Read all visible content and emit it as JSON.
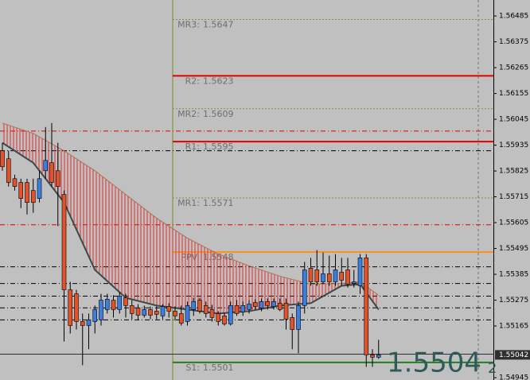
{
  "chart_data": {
    "type": "candlestick",
    "ylim": [
      1.54935,
      1.56553
    ],
    "yticks": [
      1.56485,
      1.56375,
      1.56265,
      1.56155,
      1.56045,
      1.55935,
      1.55825,
      1.55715,
      1.55605,
      1.55495,
      1.55385,
      1.55275,
      1.55165,
      1.54945
    ],
    "bull_color": "#3d7fe0",
    "bear_color": "#e2532b",
    "open": [
      1.55911,
      1.55877,
      1.55792,
      1.55776,
      1.55776,
      1.55742,
      1.55708,
      1.55826,
      1.5586,
      1.55826,
      1.55725,
      1.55319,
      1.55302,
      1.55184,
      1.55167,
      1.55184,
      1.55191,
      1.55235,
      1.55275,
      1.55235,
      1.55285,
      1.55252,
      1.55242,
      1.55211,
      1.55235,
      1.55228,
      1.55208,
      1.55248,
      1.55228,
      1.55218,
      1.55184,
      1.55235,
      1.55275,
      1.55252,
      1.55235,
      1.55218,
      1.55208,
      1.55174,
      1.55252,
      1.55225,
      1.55235,
      1.55265,
      1.55242,
      1.55269,
      1.55248,
      1.55262,
      1.55262,
      1.55201,
      1.5515,
      1.55252,
      1.55411,
      1.55404,
      1.55353,
      1.55387,
      1.55353,
      1.55394,
      1.55404,
      1.55346,
      1.55336,
      1.55455,
      1.55042,
      1.55032
    ],
    "high": [
      1.55945,
      1.55911,
      1.55809,
      1.55792,
      1.55792,
      1.55792,
      1.55826,
      1.56012,
      1.56029,
      1.55945,
      1.55742,
      1.55353,
      1.55319,
      1.55218,
      1.55218,
      1.55252,
      1.55302,
      1.55302,
      1.55296,
      1.55309,
      1.55302,
      1.55275,
      1.55258,
      1.55252,
      1.55248,
      1.55248,
      1.55258,
      1.55262,
      1.55248,
      1.55252,
      1.55269,
      1.55285,
      1.55285,
      1.55269,
      1.55255,
      1.55228,
      1.55221,
      1.55269,
      1.55275,
      1.55269,
      1.55275,
      1.55279,
      1.55282,
      1.55282,
      1.55282,
      1.55282,
      1.55282,
      1.55218,
      1.55269,
      1.55438,
      1.55455,
      1.55488,
      1.55478,
      1.55465,
      1.55471,
      1.55455,
      1.55455,
      1.55404,
      1.55471,
      1.55471,
      1.55066,
      1.55106
    ],
    "low": [
      1.55826,
      1.55759,
      1.55742,
      1.55667,
      1.5564,
      1.55647,
      1.55691,
      1.55792,
      1.55759,
      1.5559,
      1.55099,
      1.55133,
      1.5515,
      1.54998,
      1.55066,
      1.55133,
      1.55167,
      1.55218,
      1.55201,
      1.55218,
      1.55201,
      1.55194,
      1.55191,
      1.55201,
      1.55194,
      1.55194,
      1.55194,
      1.55201,
      1.55188,
      1.55167,
      1.55167,
      1.55208,
      1.55218,
      1.55201,
      1.55184,
      1.55167,
      1.55167,
      1.55167,
      1.55208,
      1.55208,
      1.55218,
      1.55235,
      1.55228,
      1.55235,
      1.55235,
      1.55228,
      1.5515,
      1.55066,
      1.55049,
      1.55218,
      1.55336,
      1.55336,
      1.55343,
      1.55336,
      1.55336,
      1.55336,
      1.55329,
      1.55329,
      1.55302,
      1.54991,
      1.54991,
      1.55025
    ],
    "close": [
      1.55843,
      1.55776,
      1.55759,
      1.55708,
      1.55691,
      1.55691,
      1.55792,
      1.5587,
      1.55776,
      1.55759,
      1.55319,
      1.55167,
      1.55184,
      1.55167,
      1.55191,
      1.55235,
      1.55275,
      1.55279,
      1.55235,
      1.55292,
      1.55252,
      1.55218,
      1.55211,
      1.55235,
      1.55211,
      1.55215,
      1.55248,
      1.55228,
      1.55208,
      1.55177,
      1.55252,
      1.55269,
      1.55228,
      1.55218,
      1.55201,
      1.55184,
      1.55174,
      1.55252,
      1.55218,
      1.55252,
      1.55258,
      1.55248,
      1.55269,
      1.55252,
      1.55269,
      1.55235,
      1.55194,
      1.5515,
      1.55252,
      1.55404,
      1.55353,
      1.55353,
      1.55387,
      1.55353,
      1.55404,
      1.5536,
      1.55343,
      1.55353,
      1.55455,
      1.55042,
      1.55032,
      1.55042
    ],
    "ma": {
      "color": "#3c4a4a",
      "x": [
        0,
        5,
        10,
        15,
        20,
        25,
        30,
        35,
        40,
        45,
        50,
        55,
        58,
        61
      ],
      "values": [
        1.55945,
        1.5586,
        1.55691,
        1.55404,
        1.55285,
        1.55252,
        1.55235,
        1.55218,
        1.55228,
        1.55252,
        1.55262,
        1.55336,
        1.55343,
        1.55235
      ]
    },
    "envelope": {
      "color": "#b07050",
      "x": [
        0,
        5,
        10,
        15,
        20,
        25,
        30,
        35,
        40,
        45,
        50,
        55,
        58,
        61
      ],
      "values": [
        1.56029,
        1.55985,
        1.55911,
        1.55826,
        1.55725,
        1.55624,
        1.55539,
        1.55471,
        1.55421,
        1.55377,
        1.55343,
        1.55346,
        1.55353,
        1.55296
      ]
    },
    "pivots": [
      {
        "name": "MR3:",
        "value": 1.5647,
        "color": "#8c8c3c",
        "style": "dotted"
      },
      {
        "name": "R2:",
        "value": 1.5623,
        "color": "#e00000",
        "style": "solid"
      },
      {
        "name": "MR2:",
        "value": 1.5609,
        "color": "#8c8c3c",
        "style": "dotted"
      },
      {
        "name": "R1:",
        "value": 1.5595,
        "color": "#e00000",
        "style": "solid"
      },
      {
        "name": "MR1:",
        "value": 1.5571,
        "color": "#8c8c3c",
        "style": "dotted"
      },
      {
        "name": "PPV:",
        "value": 1.5548,
        "color": "#ff9020",
        "style": "solid"
      },
      {
        "name": "S1:",
        "value": 1.5501,
        "color": "#208020",
        "style": "solid"
      }
    ],
    "levels": [
      {
        "value": 1.55995,
        "color": "#e00000",
        "style": "dashdot"
      },
      {
        "value": 1.55596,
        "color": "#e00000",
        "style": "dashdot"
      },
      {
        "value": 1.55911,
        "color": "#000000",
        "style": "dashdot"
      },
      {
        "value": 1.55417,
        "color": "#000000",
        "style": "dashdot"
      },
      {
        "value": 1.55346,
        "color": "#000000",
        "style": "dashdot"
      },
      {
        "value": 1.55292,
        "color": "#000000",
        "style": "dashdot"
      },
      {
        "value": 1.55242,
        "color": "#000000",
        "style": "dashdot"
      },
      {
        "value": 1.55191,
        "color": "#000000",
        "style": "dashdot"
      },
      {
        "value": 1.55045,
        "color": "#303030",
        "style": "solid"
      }
    ],
    "current_price": 1.55042,
    "bid_display": "1.5504",
    "bid_digit": "2"
  }
}
